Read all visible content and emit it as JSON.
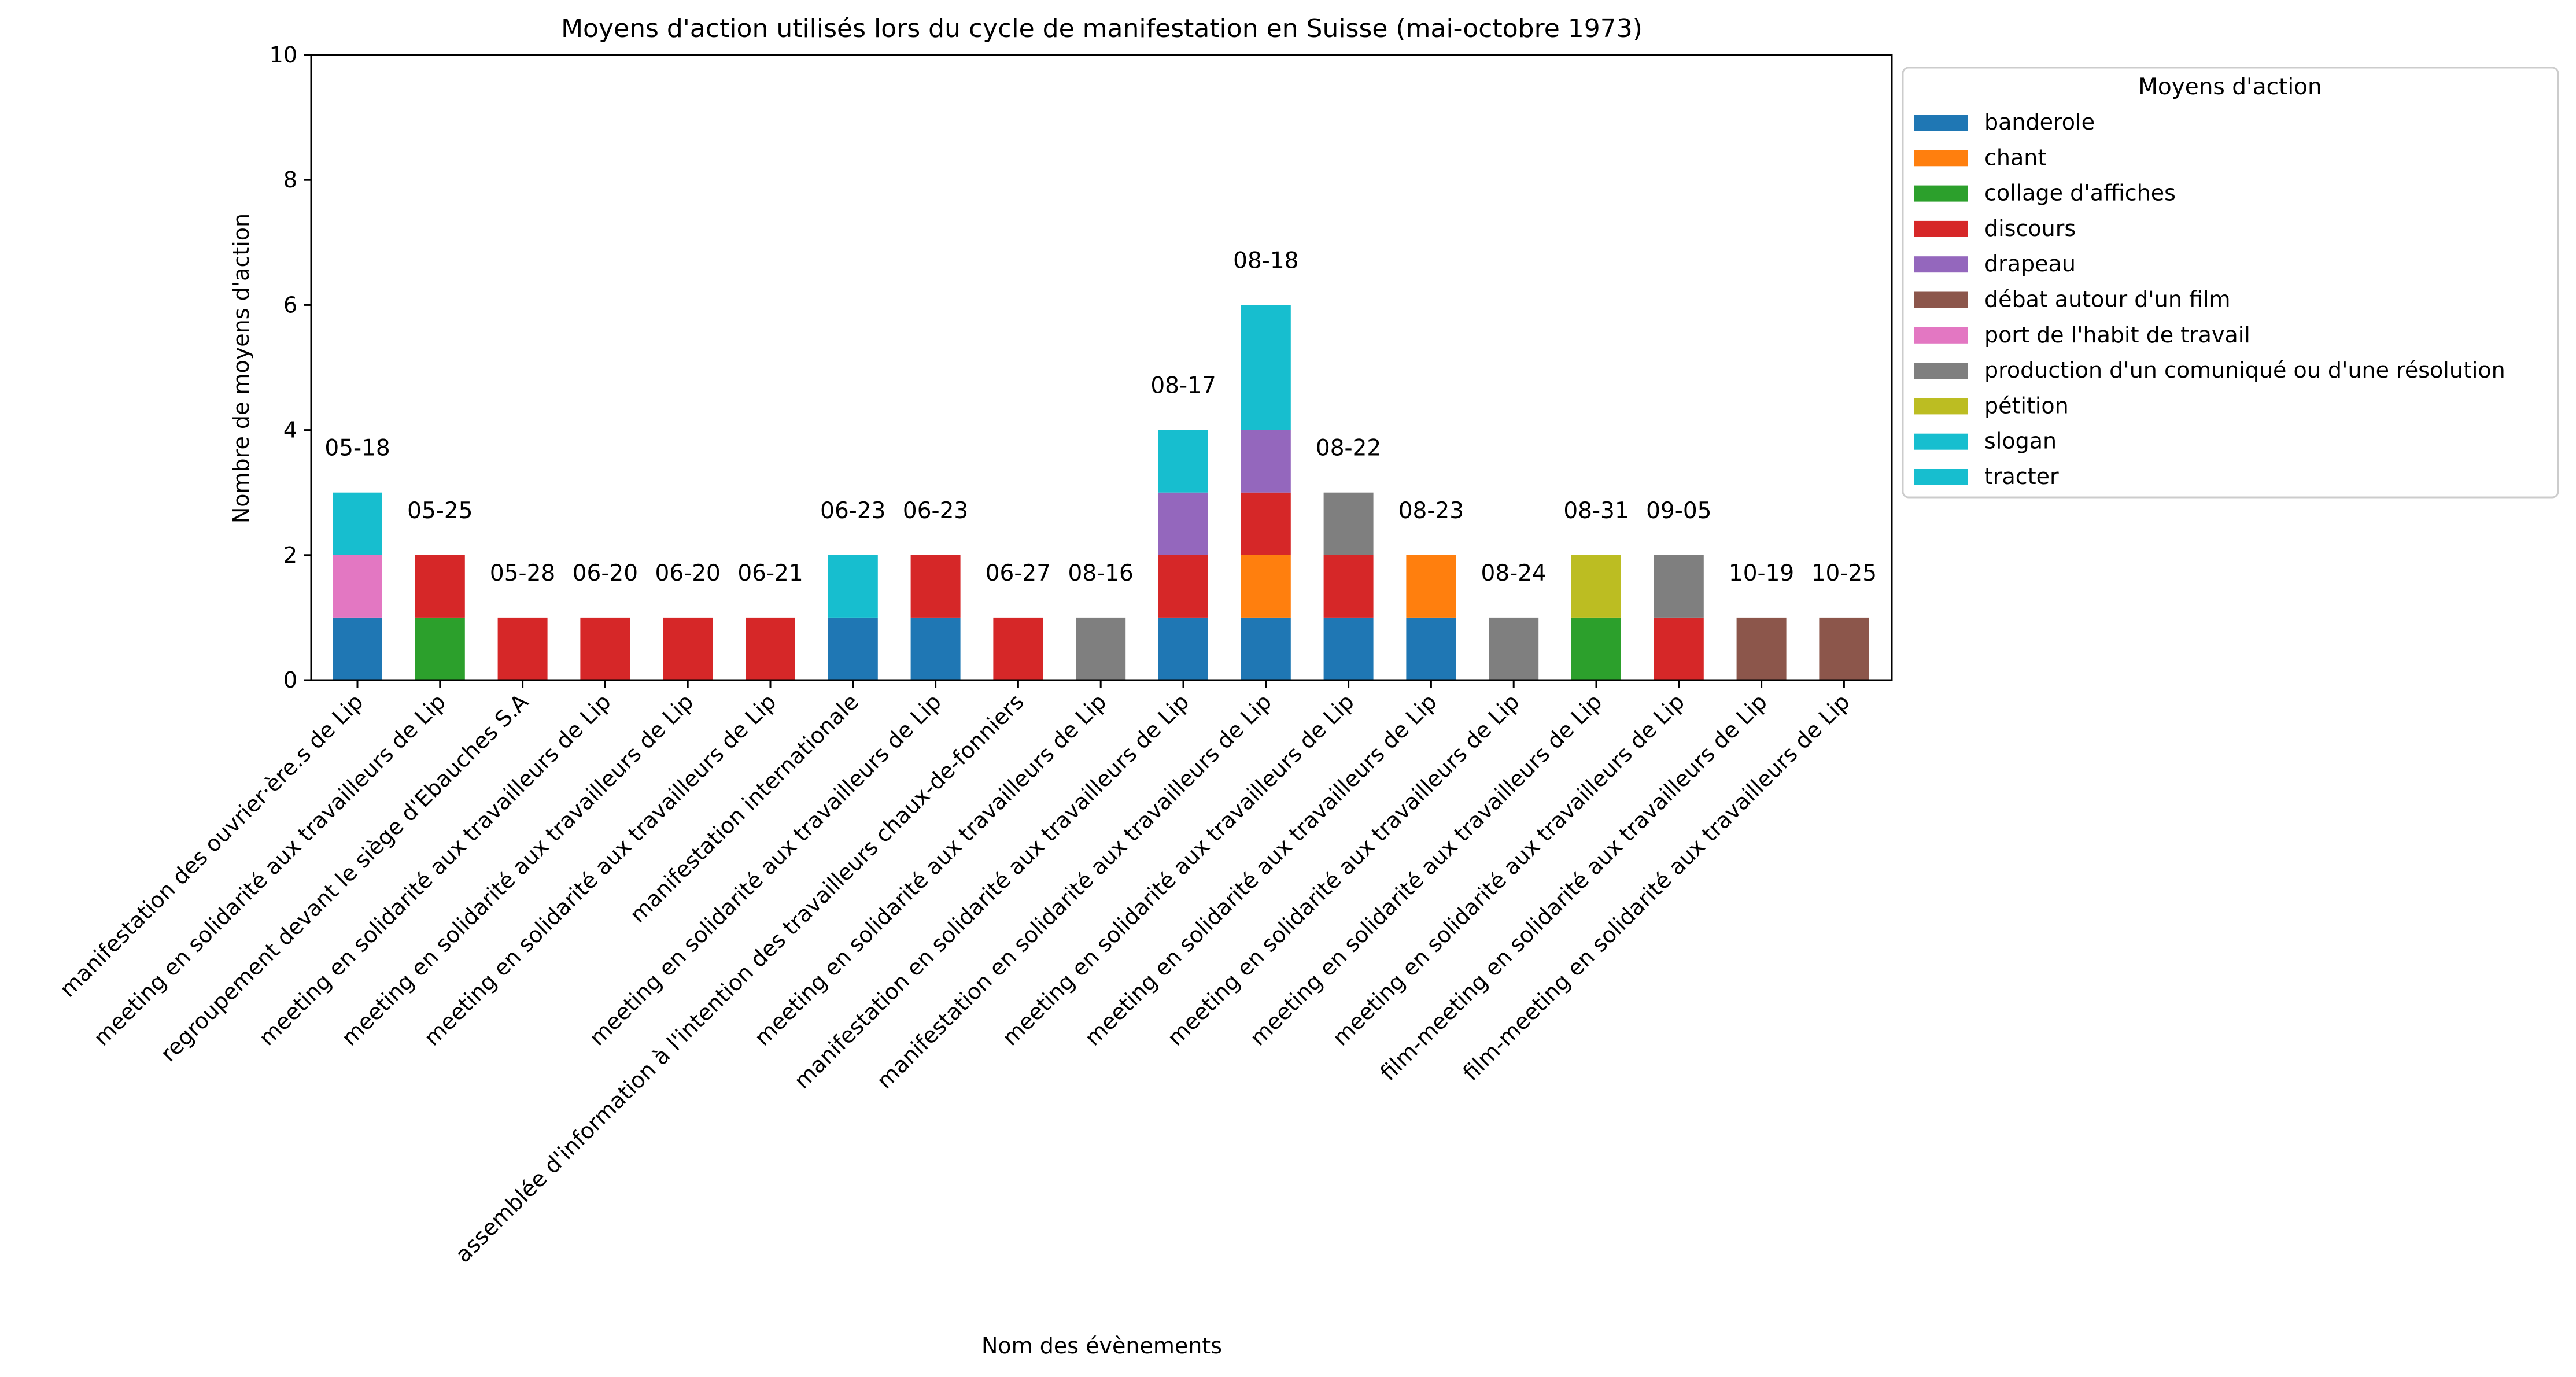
{
  "chart_data": {
    "type": "bar",
    "stacked": true,
    "title": "Moyens d'action utilisés lors du cycle de manifestation en Suisse (mai-octobre 1973)",
    "xlabel": "Nom des évènements",
    "ylabel": "Nombre de moyens d'action",
    "ylim": [
      0,
      10
    ],
    "yticks": [
      "0",
      "2",
      "4",
      "6",
      "8",
      "10"
    ],
    "grid": false,
    "legend_title": "Moyens d'action",
    "legend_position": "outside-right-top",
    "categories": [
      "manifestation des ouvrier·ère.s de Lip",
      "meeting en solidarité aux travailleurs de Lip",
      "regroupement devant le siège d'Ebauches S.A",
      "meeting en solidarité aux travailleurs de Lip",
      "meeting en solidarité aux travailleurs de Lip",
      "meeting en solidarité aux travailleurs de Lip",
      "manifestation internationale",
      "meeting en solidarité aux travailleurs de Lip",
      "assemblée d'information à l'intention des travailleurs chaux-de-fonniers",
      "meeting en solidarité aux travailleurs de Lip",
      "manifestation en solidarité aux travailleurs de Lip",
      "manifestation en solidarité aux travailleurs de Lip",
      "meeting en solidarité aux travailleurs de Lip",
      "meeting en solidarité aux travailleurs de Lip",
      "meeting en solidarité aux travailleurs de Lip",
      "meeting en solidarité aux travailleurs de Lip",
      "meeting en solidarité aux travailleurs de Lip",
      "film-meeting en solidarité aux travailleurs de Lip",
      "film-meeting en solidarité aux travailleurs de Lip"
    ],
    "bar_labels": [
      "05-18",
      "05-25",
      "05-28",
      "06-20",
      "06-20",
      "06-21",
      "06-23",
      "06-23",
      "06-27",
      "08-16",
      "08-17",
      "08-18",
      "08-22",
      "08-23",
      "08-24",
      "08-31",
      "09-05",
      "10-19",
      "10-25"
    ],
    "series": [
      {
        "name": "banderole",
        "color": "#1f77b4",
        "values": [
          1,
          0,
          0,
          0,
          0,
          0,
          1,
          1,
          0,
          0,
          1,
          1,
          1,
          1,
          0,
          0,
          0,
          0,
          0
        ]
      },
      {
        "name": "chant",
        "color": "#ff7f0e",
        "values": [
          0,
          0,
          0,
          0,
          0,
          0,
          0,
          0,
          0,
          0,
          0,
          1,
          0,
          1,
          0,
          0,
          0,
          0,
          0
        ]
      },
      {
        "name": "collage d'affiches",
        "color": "#2ca02c",
        "values": [
          0,
          1,
          0,
          0,
          0,
          0,
          0,
          0,
          0,
          0,
          0,
          0,
          0,
          0,
          0,
          1,
          0,
          0,
          0
        ]
      },
      {
        "name": "discours",
        "color": "#d62728",
        "values": [
          0,
          1,
          1,
          1,
          1,
          1,
          0,
          1,
          1,
          0,
          1,
          1,
          1,
          0,
          0,
          0,
          1,
          0,
          0
        ]
      },
      {
        "name": "drapeau",
        "color": "#9467bd",
        "values": [
          0,
          0,
          0,
          0,
          0,
          0,
          0,
          0,
          0,
          0,
          1,
          1,
          0,
          0,
          0,
          0,
          0,
          0,
          0
        ]
      },
      {
        "name": "débat autour d'un film",
        "color": "#8c564b",
        "values": [
          0,
          0,
          0,
          0,
          0,
          0,
          0,
          0,
          0,
          0,
          0,
          0,
          0,
          0,
          0,
          0,
          0,
          1,
          1
        ]
      },
      {
        "name": "port de l'habit de travail",
        "color": "#e377c2",
        "values": [
          1,
          0,
          0,
          0,
          0,
          0,
          0,
          0,
          0,
          0,
          0,
          0,
          0,
          0,
          0,
          0,
          0,
          0,
          0
        ]
      },
      {
        "name": "production d'un comuniqué ou d'une résolution",
        "color": "#7f7f7f",
        "values": [
          0,
          0,
          0,
          0,
          0,
          0,
          0,
          0,
          0,
          1,
          0,
          0,
          1,
          0,
          1,
          0,
          1,
          0,
          0
        ]
      },
      {
        "name": "pétition",
        "color": "#bcbd22",
        "values": [
          0,
          0,
          0,
          0,
          0,
          0,
          0,
          0,
          0,
          0,
          0,
          0,
          0,
          0,
          0,
          1,
          0,
          0,
          0
        ]
      },
      {
        "name": "slogan",
        "color": "#17becf",
        "values": [
          1,
          0,
          0,
          0,
          0,
          0,
          1,
          0,
          0,
          0,
          1,
          1,
          0,
          0,
          0,
          0,
          0,
          0,
          0
        ]
      },
      {
        "name": "tracter",
        "color": "#17becf",
        "values": [
          0,
          0,
          0,
          0,
          0,
          0,
          0,
          0,
          0,
          0,
          0,
          1,
          0,
          0,
          0,
          0,
          0,
          0,
          0
        ]
      }
    ]
  }
}
